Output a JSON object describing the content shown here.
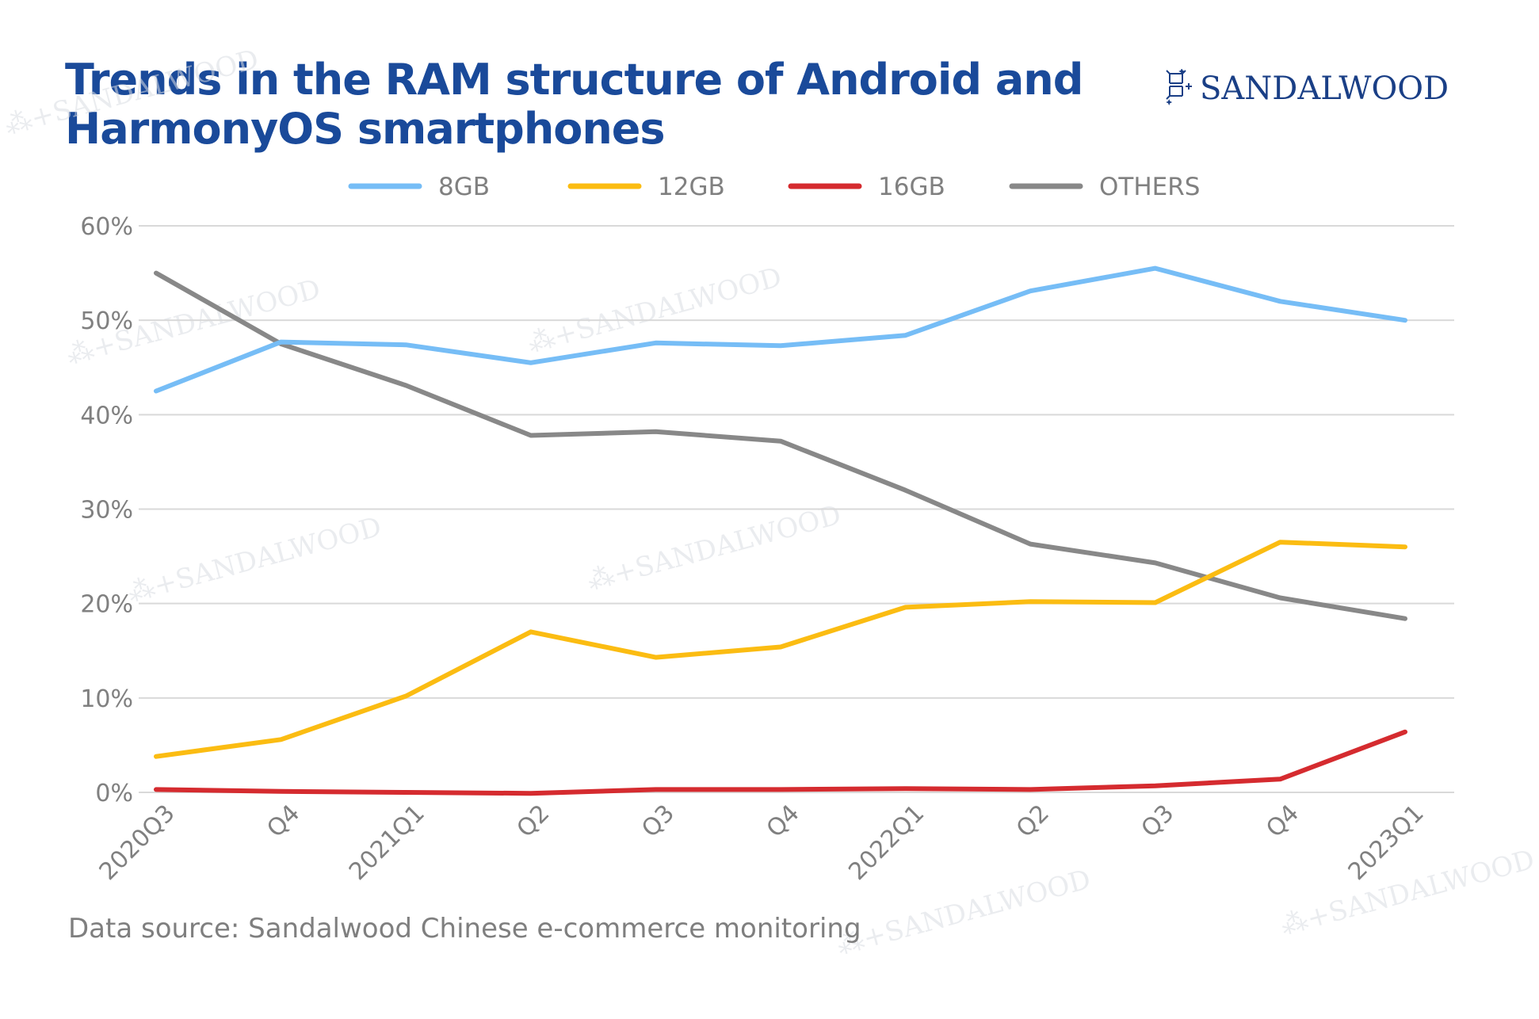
{
  "title_lines": [
    "Trends in the RAM structure of Android and",
    "HarmonyOS smartphones"
  ],
  "logo": {
    "text": "SANDALWOOD",
    "icon": "sandalwood-knot-icon",
    "color": "#1a3f86"
  },
  "source": "Data source: Sandalwood Chinese e-commerce monitoring",
  "watermark_text": "SANDALWOOD",
  "chart_data": {
    "type": "line",
    "title": "Trends in the RAM structure of Android and HarmonyOS smartphones",
    "categories": [
      "2020Q3",
      "Q4",
      "2021Q1",
      "Q2",
      "Q3",
      "Q4",
      "2022Q1",
      "Q2",
      "Q3",
      "Q4",
      "2023Q1"
    ],
    "xlabel": "",
    "ylabel": "",
    "ylim": [
      0,
      60
    ],
    "y_ticks": [
      "0%",
      "10%",
      "20%",
      "30%",
      "40%",
      "50%",
      "60%"
    ],
    "grid": "horizontal",
    "legend_position": "top",
    "series": [
      {
        "name": "8GB",
        "color": "#76bdf6",
        "values": [
          42.5,
          47.7,
          47.4,
          45.5,
          47.6,
          47.3,
          48.4,
          53.1,
          55.5,
          52.0,
          50.0
        ]
      },
      {
        "name": "12GB",
        "color": "#fbbc12",
        "values": [
          3.8,
          5.6,
          10.2,
          17.0,
          14.3,
          15.4,
          19.6,
          20.2,
          20.1,
          26.5,
          26.0
        ]
      },
      {
        "name": "16GB",
        "color": "#d52b2f",
        "values": [
          0.3,
          0.1,
          0.0,
          -0.1,
          0.3,
          0.3,
          0.4,
          0.3,
          0.7,
          1.4,
          6.4
        ]
      },
      {
        "name": "OTHERS",
        "color": "#888888",
        "values": [
          55.0,
          47.5,
          43.1,
          37.8,
          38.2,
          37.2,
          32.0,
          26.3,
          24.3,
          20.6,
          18.4
        ]
      }
    ]
  }
}
